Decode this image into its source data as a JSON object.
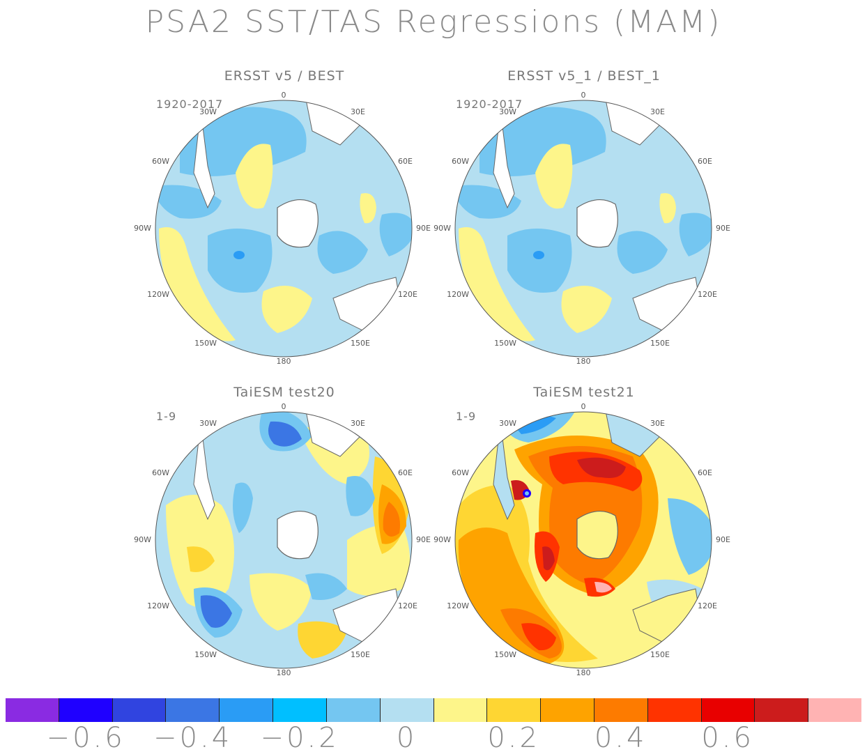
{
  "figure": {
    "title": "PSA2 SST/TAS Regressions (MAM)"
  },
  "panels": [
    {
      "id": "p1",
      "title": "ERSST v5 / BEST",
      "period": "1920-2017"
    },
    {
      "id": "p2",
      "title": "ERSST v5_1 / BEST_1",
      "period": "1920-2017"
    },
    {
      "id": "p3",
      "title": "TaiESM test20",
      "period": "1-9"
    },
    {
      "id": "p4",
      "title": "TaiESM test21",
      "period": "1-9"
    }
  ],
  "longitude_labels": [
    "0",
    "30E",
    "60E",
    "90E",
    "120E",
    "150E",
    "180",
    "150W",
    "120W",
    "90W",
    "60W",
    "30W"
  ],
  "colorbar": {
    "colors": [
      "#8a2be2",
      "#1f00ff",
      "#3044e0",
      "#3b76e4",
      "#2a9cf5",
      "#00bfff",
      "#74c6f1",
      "#b4dff1",
      "#fdf58a",
      "#fed633",
      "#fea300",
      "#fd7b00",
      "#ff3300",
      "#e80000",
      "#cc1c1c",
      "#ffb3b3"
    ],
    "tick_labels": [
      "-0.6",
      "-0.4",
      "-0.2",
      "0",
      "0.2",
      "0.4",
      "0.6"
    ]
  },
  "map_projection": "south polar stereographic",
  "land_color": "#ffffff",
  "ocean_base_color": "#b4dff1"
}
